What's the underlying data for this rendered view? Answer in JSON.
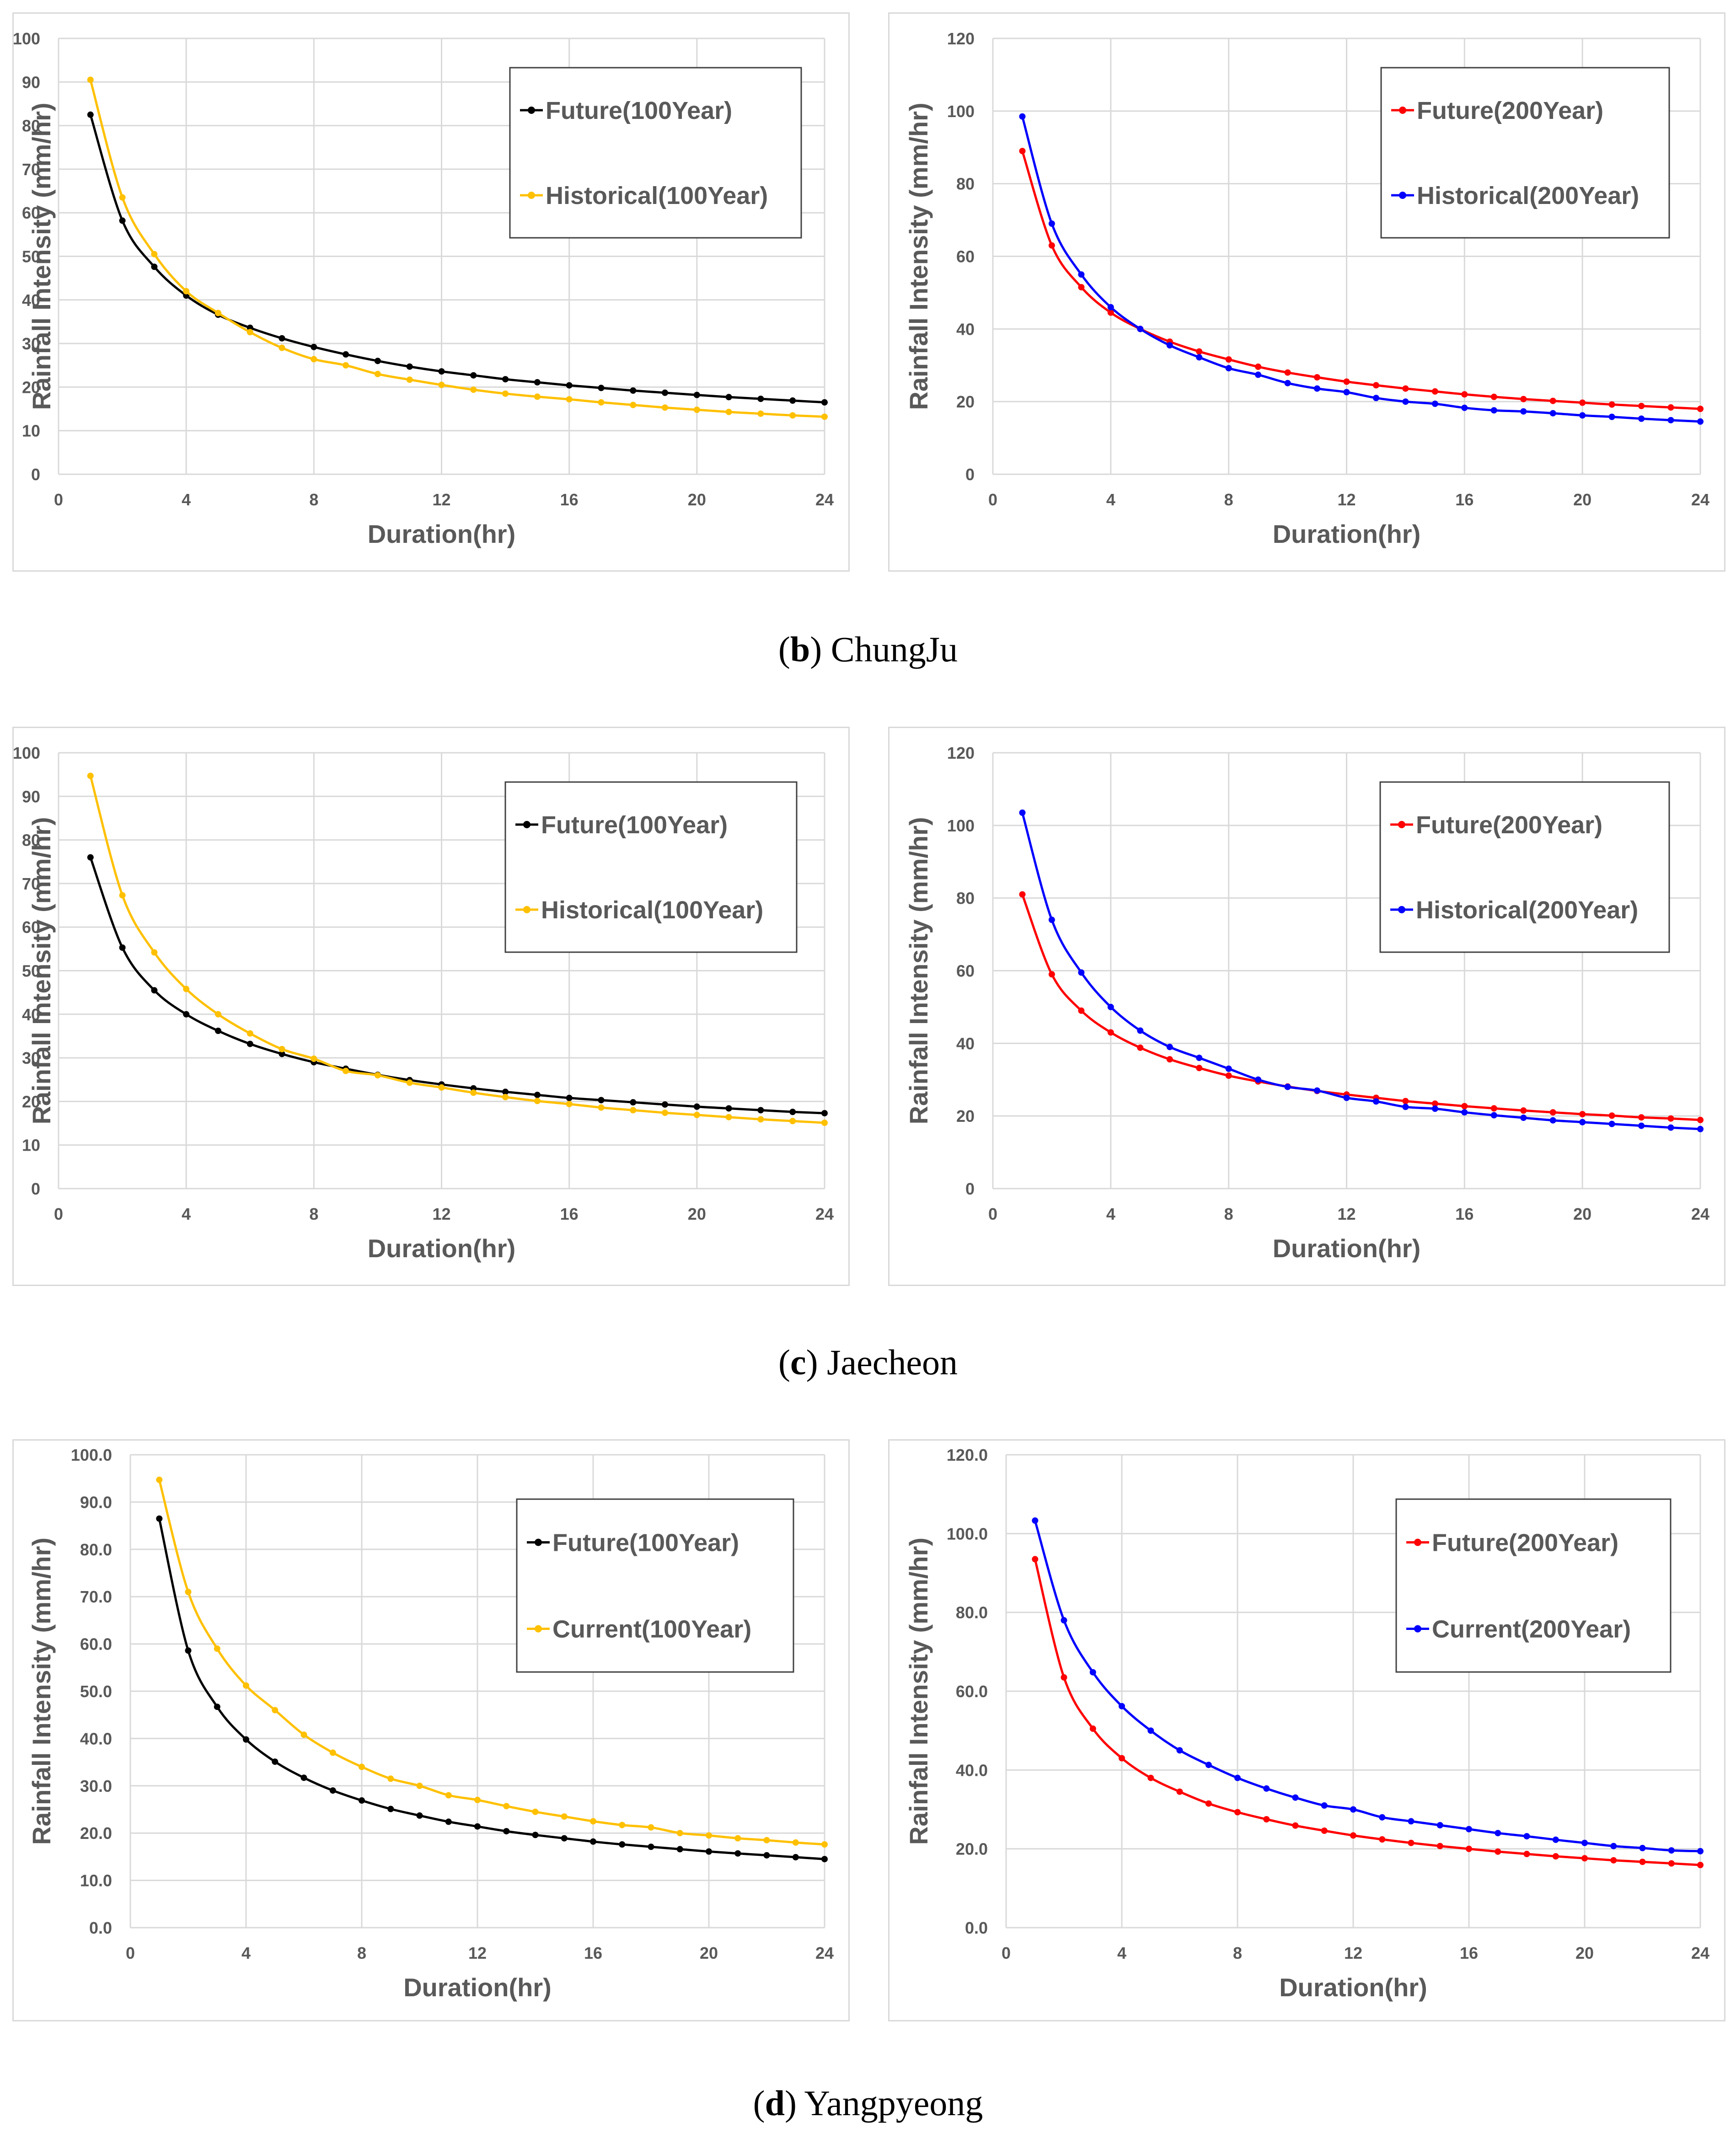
{
  "captions": [
    {
      "letter": "b",
      "name": "ChungJu"
    },
    {
      "letter": "c",
      "name": "Jaecheon"
    },
    {
      "letter": "d",
      "name": "Yangpyeong"
    }
  ],
  "chart_data": [
    {
      "type": "line",
      "panel": "b-left",
      "xlabel": "Duration(hr)",
      "ylabel": "Rainfall Intensity (mm/hr)",
      "xlim": [
        0,
        24
      ],
      "xticks": [
        0,
        4,
        8,
        12,
        16,
        20,
        24
      ],
      "ylim": [
        0,
        100
      ],
      "yticks": [
        0,
        10,
        20,
        30,
        40,
        50,
        60,
        70,
        80,
        90,
        100
      ],
      "ytick_decimals": 0,
      "x": [
        1,
        2,
        3,
        4,
        5,
        6,
        7,
        8,
        9,
        10,
        11,
        12,
        13,
        14,
        15,
        16,
        17,
        18,
        19,
        20,
        21,
        22,
        23,
        24
      ],
      "series": [
        {
          "name": "Future(100Year)",
          "color": "#000000",
          "values": [
            82.5,
            58.2,
            47.6,
            41.0,
            36.6,
            33.6,
            31.2,
            29.2,
            27.5,
            26.0,
            24.7,
            23.6,
            22.7,
            21.8,
            21.1,
            20.4,
            19.8,
            19.2,
            18.7,
            18.2,
            17.7,
            17.3,
            16.9,
            16.5
          ]
        },
        {
          "name": "Historical(100Year)",
          "color": "#ffc000",
          "values": [
            90.5,
            63.5,
            50.5,
            42.0,
            37.0,
            32.6,
            29.0,
            26.4,
            25.0,
            23.0,
            21.7,
            20.5,
            19.4,
            18.5,
            17.8,
            17.2,
            16.5,
            15.9,
            15.3,
            14.8,
            14.3,
            13.9,
            13.5,
            13.2
          ]
        }
      ]
    },
    {
      "type": "line",
      "panel": "b-right",
      "xlabel": "Duration(hr)",
      "ylabel": "Rainfall Intensity (mm/hr)",
      "xlim": [
        0,
        24
      ],
      "xticks": [
        0,
        4,
        8,
        12,
        16,
        20,
        24
      ],
      "ylim": [
        0,
        120
      ],
      "yticks": [
        0,
        20,
        40,
        60,
        80,
        100,
        120
      ],
      "ytick_decimals": 0,
      "x": [
        1,
        2,
        3,
        4,
        5,
        6,
        7,
        8,
        9,
        10,
        11,
        12,
        13,
        14,
        15,
        16,
        17,
        18,
        19,
        20,
        21,
        22,
        23,
        24
      ],
      "series": [
        {
          "name": "Future(200Year)",
          "color": "#ff0000",
          "values": [
            89.0,
            63.0,
            51.5,
            44.5,
            40.0,
            36.5,
            33.8,
            31.6,
            29.6,
            28.0,
            26.7,
            25.5,
            24.5,
            23.6,
            22.8,
            22.0,
            21.3,
            20.7,
            20.2,
            19.7,
            19.2,
            18.8,
            18.4,
            18.0
          ]
        },
        {
          "name": "Historical(200Year)",
          "color": "#0000ff",
          "values": [
            98.5,
            69.0,
            55.0,
            46.0,
            40.0,
            35.5,
            32.2,
            29.2,
            27.4,
            25.1,
            23.6,
            22.6,
            21.0,
            20.0,
            19.4,
            18.3,
            17.6,
            17.3,
            16.8,
            16.2,
            15.8,
            15.3,
            14.9,
            14.5
          ]
        }
      ]
    },
    {
      "type": "line",
      "panel": "c-left",
      "xlabel": "Duration(hr)",
      "ylabel": "Rainfall Intensity (mm/hr)",
      "xlim": [
        0,
        24
      ],
      "xticks": [
        0,
        4,
        8,
        12,
        16,
        20,
        24
      ],
      "ylim": [
        0,
        100
      ],
      "yticks": [
        0,
        10,
        20,
        30,
        40,
        50,
        60,
        70,
        80,
        90,
        100
      ],
      "ytick_decimals": 0,
      "x": [
        1,
        2,
        3,
        4,
        5,
        6,
        7,
        8,
        9,
        10,
        11,
        12,
        13,
        14,
        15,
        16,
        17,
        18,
        19,
        20,
        21,
        22,
        23,
        24
      ],
      "series": [
        {
          "name": "Future(100Year)",
          "color": "#000000",
          "values": [
            76.0,
            55.3,
            45.5,
            40.0,
            36.2,
            33.2,
            30.9,
            29.0,
            27.5,
            26.1,
            24.9,
            23.9,
            23.0,
            22.2,
            21.5,
            20.8,
            20.3,
            19.8,
            19.3,
            18.8,
            18.4,
            18.0,
            17.6,
            17.3
          ]
        },
        {
          "name": "Historical(100Year)",
          "color": "#ffc000",
          "values": [
            94.7,
            67.3,
            54.2,
            45.8,
            40.0,
            35.6,
            32.0,
            29.8,
            27.0,
            26.0,
            24.3,
            23.2,
            22.0,
            21.0,
            20.1,
            19.4,
            18.6,
            18.0,
            17.4,
            16.9,
            16.4,
            15.9,
            15.5,
            15.1
          ]
        }
      ]
    },
    {
      "type": "line",
      "panel": "c-right",
      "xlabel": "Duration(hr)",
      "ylabel": "Rainfall Intensity (mm/hr)",
      "xlim": [
        0,
        24
      ],
      "xticks": [
        0,
        4,
        8,
        12,
        16,
        20,
        24
      ],
      "ylim": [
        0,
        120
      ],
      "yticks": [
        0,
        20,
        40,
        60,
        80,
        100,
        120
      ],
      "ytick_decimals": 0,
      "x": [
        1,
        2,
        3,
        4,
        5,
        6,
        7,
        8,
        9,
        10,
        11,
        12,
        13,
        14,
        15,
        16,
        17,
        18,
        19,
        20,
        21,
        22,
        23,
        24
      ],
      "series": [
        {
          "name": "Future(200Year)",
          "color": "#ff0000",
          "values": [
            81.0,
            59.0,
            49.0,
            43.0,
            38.8,
            35.6,
            33.2,
            31.1,
            29.5,
            28.1,
            26.9,
            25.9,
            25.0,
            24.1,
            23.4,
            22.7,
            22.1,
            21.5,
            21.0,
            20.5,
            20.1,
            19.6,
            19.3,
            18.9
          ]
        },
        {
          "name": "Historical(200Year)",
          "color": "#0000ff",
          "values": [
            103.5,
            74.0,
            59.5,
            50.0,
            43.5,
            39.0,
            36.0,
            33.0,
            30.0,
            28.0,
            27.0,
            25.0,
            24.0,
            22.5,
            22.0,
            21.0,
            20.2,
            19.5,
            18.8,
            18.3,
            17.8,
            17.3,
            16.8,
            16.4
          ]
        }
      ]
    },
    {
      "type": "line",
      "panel": "d-left",
      "xlabel": "Duration(hr)",
      "ylabel": "Rainfall Intensity (mm/hr)",
      "xlim": [
        0,
        24
      ],
      "xticks": [
        0,
        4,
        8,
        12,
        16,
        20,
        24
      ],
      "ylim": [
        0,
        100
      ],
      "yticks": [
        0,
        10,
        20,
        30,
        40,
        50,
        60,
        70,
        80,
        90,
        100
      ],
      "ytick_decimals": 1,
      "x": [
        1,
        2,
        3,
        4,
        5,
        6,
        7,
        8,
        9,
        10,
        11,
        12,
        13,
        14,
        15,
        16,
        17,
        18,
        19,
        20,
        21,
        22,
        23,
        24
      ],
      "series": [
        {
          "name": "Future(100Year)",
          "color": "#000000",
          "values": [
            86.5,
            58.6,
            46.7,
            39.8,
            35.1,
            31.7,
            29.0,
            26.9,
            25.1,
            23.7,
            22.4,
            21.4,
            20.4,
            19.6,
            18.9,
            18.2,
            17.6,
            17.1,
            16.6,
            16.1,
            15.7,
            15.3,
            14.9,
            14.5
          ]
        },
        {
          "name": "Current(100Year)",
          "color": "#ffc000",
          "values": [
            94.7,
            71.0,
            59.0,
            51.2,
            46.0,
            40.8,
            37.0,
            34.0,
            31.5,
            30.0,
            28.0,
            27.0,
            25.7,
            24.5,
            23.5,
            22.5,
            21.7,
            21.2,
            20.0,
            19.5,
            18.9,
            18.5,
            18.0,
            17.6
          ]
        }
      ]
    },
    {
      "type": "line",
      "panel": "d-right",
      "xlabel": "Duration(hr)",
      "ylabel": "Rainfall Intensity (mm/hr)",
      "xlim": [
        0,
        24
      ],
      "xticks": [
        0,
        4,
        8,
        12,
        16,
        20,
        24
      ],
      "ylim": [
        0,
        120
      ],
      "yticks": [
        0,
        20,
        40,
        60,
        80,
        100,
        120
      ],
      "ytick_decimals": 1,
      "x": [
        1,
        2,
        3,
        4,
        5,
        6,
        7,
        8,
        9,
        10,
        11,
        12,
        13,
        14,
        15,
        16,
        17,
        18,
        19,
        20,
        21,
        22,
        23,
        24
      ],
      "series": [
        {
          "name": "Future(200Year)",
          "color": "#ff0000",
          "values": [
            93.5,
            63.5,
            50.5,
            43.0,
            38.0,
            34.5,
            31.5,
            29.3,
            27.5,
            25.9,
            24.6,
            23.4,
            22.4,
            21.5,
            20.7,
            20.0,
            19.3,
            18.7,
            18.1,
            17.6,
            17.1,
            16.7,
            16.3,
            15.9
          ]
        },
        {
          "name": "Current(200Year)",
          "color": "#0000ff",
          "values": [
            103.3,
            78.0,
            64.8,
            56.2,
            50.0,
            45.0,
            41.3,
            38.0,
            35.3,
            33.0,
            31.0,
            30.0,
            28.0,
            27.0,
            26.0,
            25.0,
            24.0,
            23.2,
            22.3,
            21.5,
            20.7,
            20.2,
            19.6,
            19.4
          ]
        }
      ]
    }
  ]
}
